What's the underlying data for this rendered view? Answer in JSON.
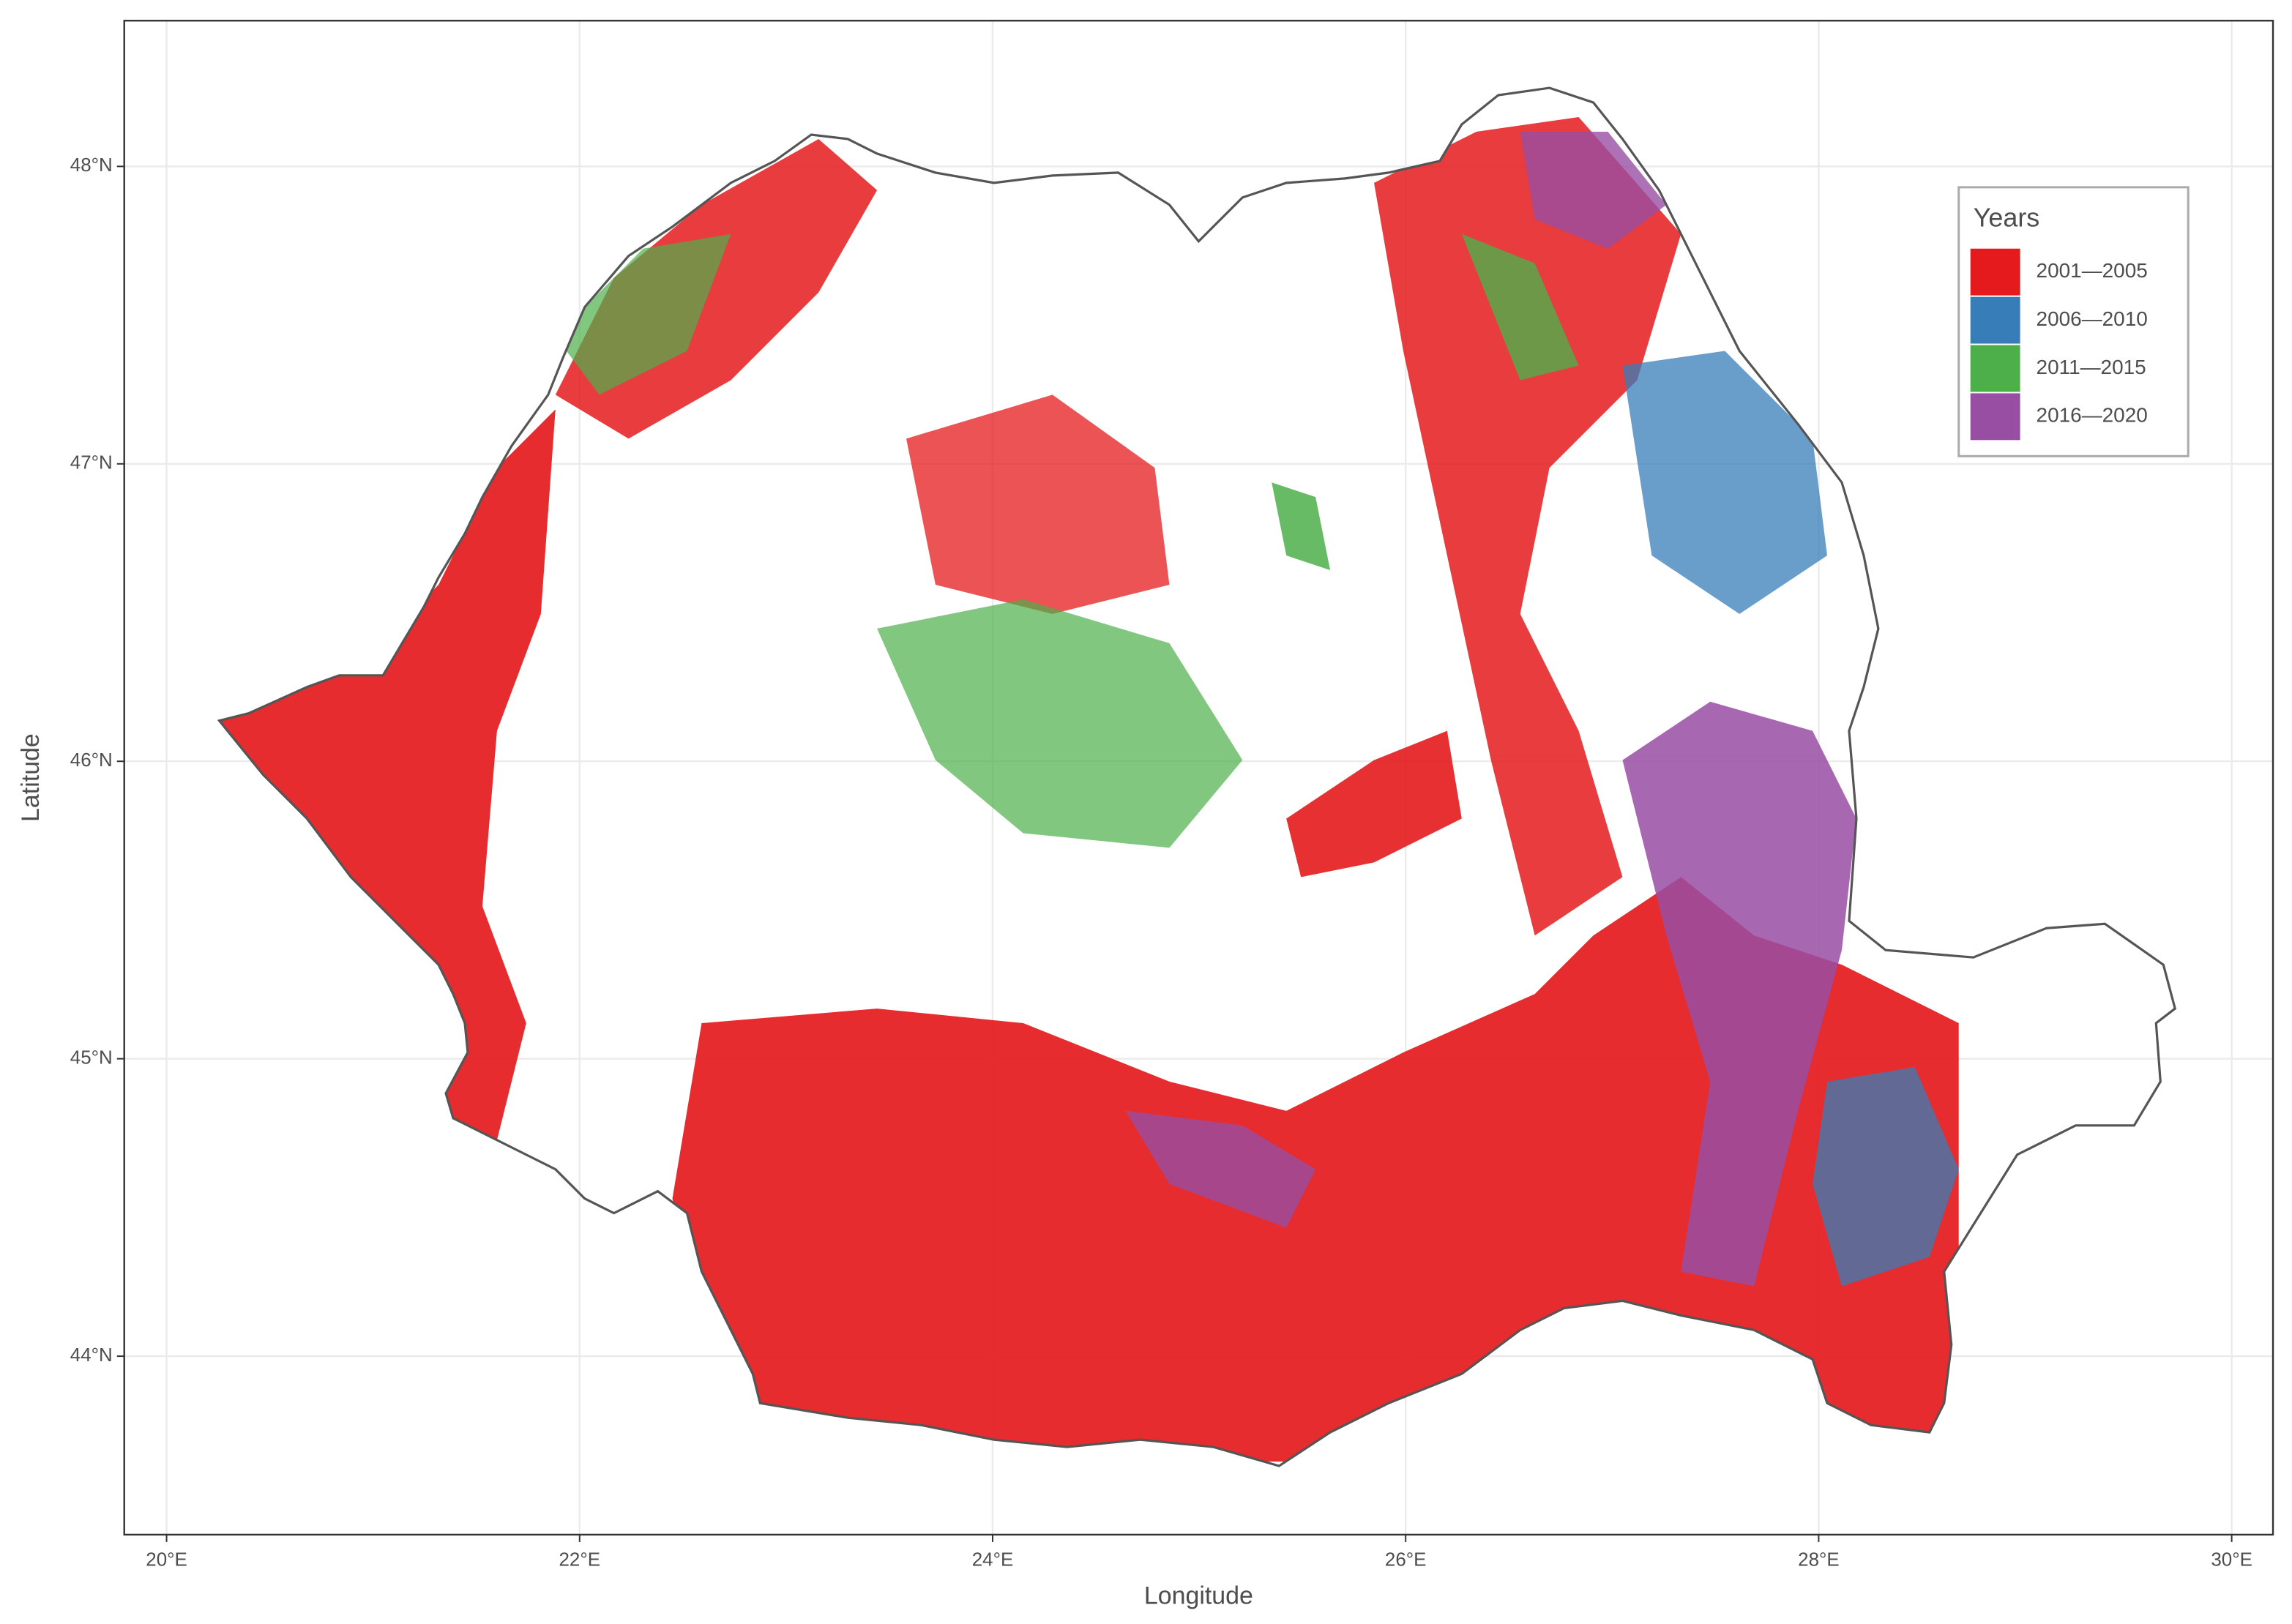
{
  "chart_data": {
    "type": "map",
    "xlabel": "Longitude",
    "ylabel": "Latitude",
    "xlim": [
      19.795,
      30.2
    ],
    "ylim": [
      43.4,
      48.49
    ],
    "xticks": [
      {
        "value": 20,
        "label": "20°E"
      },
      {
        "value": 22,
        "label": "22°E"
      },
      {
        "value": 24,
        "label": "24°E"
      },
      {
        "value": 26,
        "label": "26°E"
      },
      {
        "value": 28,
        "label": "28°E"
      },
      {
        "value": 30,
        "label": "30°E"
      }
    ],
    "yticks": [
      {
        "value": 44,
        "label": "44°N"
      },
      {
        "value": 45,
        "label": "45°N"
      },
      {
        "value": 46,
        "label": "46°N"
      },
      {
        "value": 47,
        "label": "47°N"
      },
      {
        "value": 48,
        "label": "48°N"
      }
    ],
    "grid": true,
    "legend": {
      "title": "Years",
      "position": "top-right"
    },
    "series": [
      {
        "name": "2001—2005",
        "color": "#e41a1c"
      },
      {
        "name": "2006—2010",
        "color": "#377eb8"
      },
      {
        "name": "2011—2015",
        "color": "#4daf4a"
      },
      {
        "name": "2016—2020",
        "color": "#984ea3"
      }
    ]
  }
}
